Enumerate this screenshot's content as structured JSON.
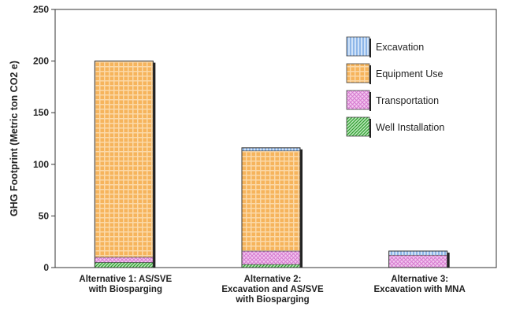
{
  "chart_data": {
    "type": "bar",
    "stacked": true,
    "title": "",
    "xlabel": "",
    "ylabel": "GHG Footprint (Metric ton CO2 e)",
    "ylim": [
      0,
      250
    ],
    "yticks": [
      0,
      50,
      100,
      150,
      200,
      250
    ],
    "grid": false,
    "legend_placement": "top-right",
    "categories": [
      [
        "Alternative 1: AS/SVE",
        "with Biosparging"
      ],
      [
        "Alternative 2:",
        "Excavation and AS/SVE",
        "with Biosparging"
      ],
      [
        "Alternative 3:",
        "Excavation with MNA"
      ]
    ],
    "series": [
      {
        "name": "Well Installation",
        "values": [
          5,
          3,
          0
        ],
        "color": "#3db03d",
        "pattern": "diagonal-hatch"
      },
      {
        "name": "Transportation",
        "values": [
          5,
          13,
          12
        ],
        "color": "#e9a3e3",
        "pattern": "crosshatch"
      },
      {
        "name": "Equipment Use",
        "values": [
          190,
          97,
          0
        ],
        "color": "#f6b45c",
        "pattern": "grid"
      },
      {
        "name": "Excavation",
        "values": [
          0,
          3,
          4
        ],
        "color": "#9fc4ee",
        "pattern": "vertical-lines"
      }
    ],
    "legend_order": [
      "Excavation",
      "Equipment Use",
      "Transportation",
      "Well Installation"
    ]
  }
}
